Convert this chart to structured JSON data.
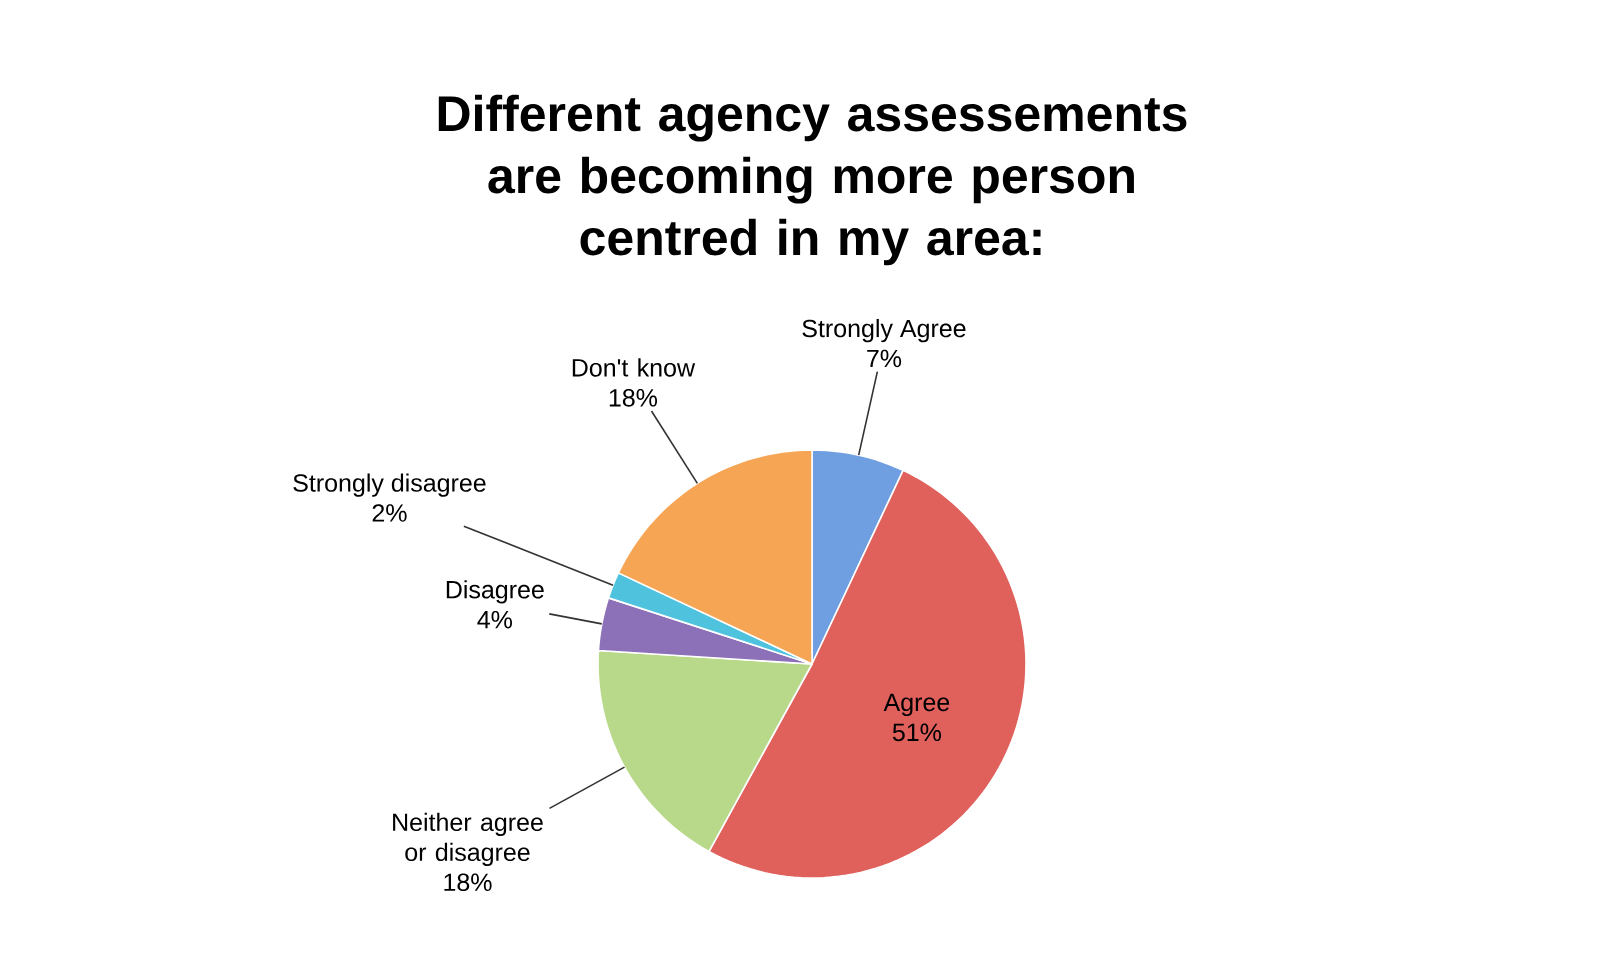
{
  "chart_data": {
    "type": "pie",
    "title": "Different agency assessements are becoming more person centred in my area:",
    "categories": [
      "Strongly Agree",
      "Agree",
      "Neither agree or disagree",
      "Disagree",
      "Strongly disagree",
      "Don't know"
    ],
    "values": [
      7,
      51,
      18,
      4,
      2,
      18
    ],
    "value_labels": [
      "7%",
      "51%",
      "18%",
      "4%",
      "2%",
      "18%"
    ],
    "colors": [
      "#6f9fe0",
      "#e0605c",
      "#b9d98a",
      "#8c70b8",
      "#4fc3de",
      "#f6a555"
    ]
  }
}
